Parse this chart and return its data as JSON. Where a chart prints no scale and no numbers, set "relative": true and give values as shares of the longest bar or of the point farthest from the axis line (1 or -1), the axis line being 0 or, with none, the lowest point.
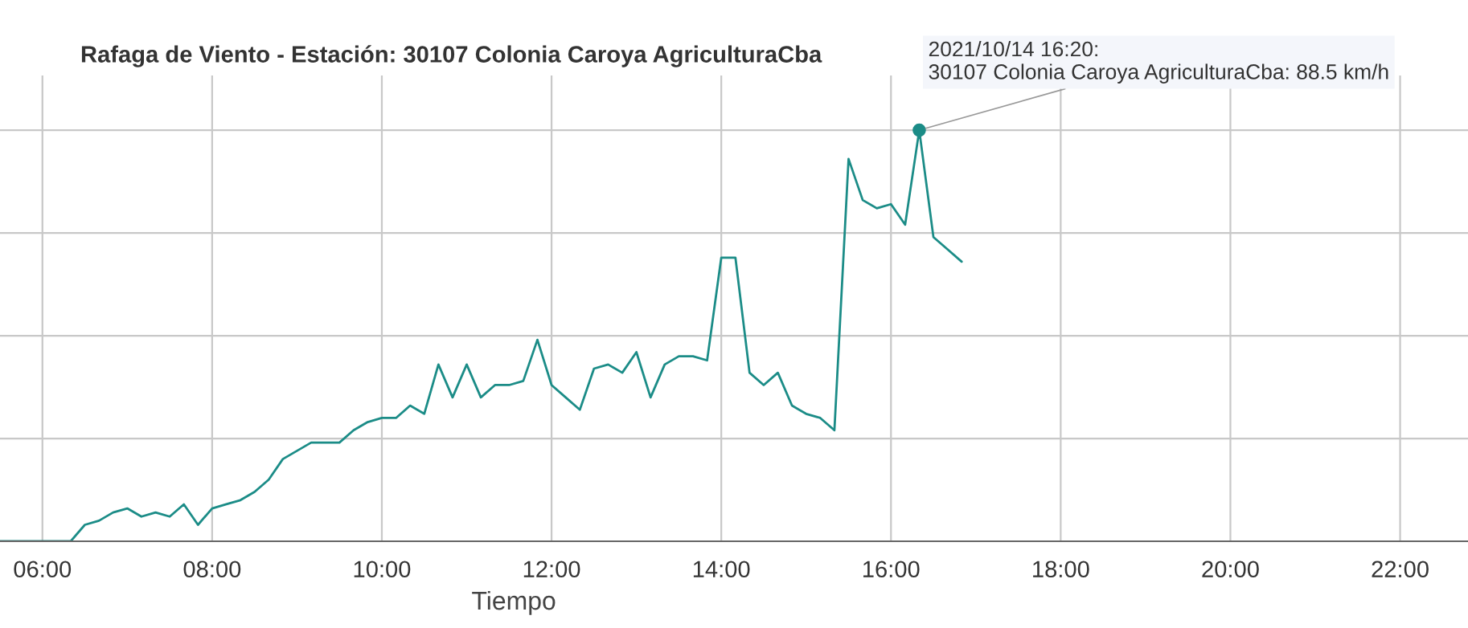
{
  "chart_data": {
    "type": "line",
    "title": "Rafaga de Viento - Estación: 30107 Colonia Caroya AgriculturaCba",
    "xlabel": "Tiempo",
    "relative": true,
    "grid": true,
    "marker": "none",
    "line_style": "solid",
    "xlim": [
      5.5,
      22.8
    ],
    "xticks": [
      {
        "value": 6,
        "label": "06:00"
      },
      {
        "value": 8,
        "label": "08:00"
      },
      {
        "value": 10,
        "label": "10:00"
      },
      {
        "value": 12,
        "label": "12:00"
      },
      {
        "value": 14,
        "label": "14:00"
      },
      {
        "value": 16,
        "label": "16:00"
      },
      {
        "value": 18,
        "label": "18:00"
      },
      {
        "value": 20,
        "label": "20:00"
      },
      {
        "value": 22,
        "label": "22:00"
      }
    ],
    "x": [
      5.5,
      5.6667,
      5.8333,
      6.0,
      6.1667,
      6.3333,
      6.5,
      6.6667,
      6.8333,
      7.0,
      7.1667,
      7.3333,
      7.5,
      7.6667,
      7.8333,
      8.0,
      8.1667,
      8.3333,
      8.5,
      8.6667,
      8.8333,
      9.0,
      9.1667,
      9.3333,
      9.5,
      9.6667,
      9.8333,
      10.0,
      10.1667,
      10.3333,
      10.5,
      10.6667,
      10.8333,
      11.0,
      11.1667,
      11.3333,
      11.5,
      11.6667,
      11.8333,
      12.0,
      12.1667,
      12.3333,
      12.5,
      12.6667,
      12.8333,
      13.0,
      13.1667,
      13.3333,
      13.5,
      13.6667,
      13.8333,
      14.0,
      14.1667,
      14.3333,
      14.5,
      14.6667,
      14.8333,
      15.0,
      15.1667,
      15.3333,
      15.5,
      15.6667,
      15.8333,
      16.0,
      16.1667,
      16.3333,
      16.5,
      16.6667,
      16.8333
    ],
    "series": [
      {
        "color": "#1b8c87",
        "values": [
          0,
          0,
          0,
          0,
          0,
          0.0,
          0.04,
          0.05,
          0.07,
          0.08,
          0.06,
          0.07,
          0.06,
          0.09,
          0.04,
          0.08,
          0.09,
          0.1,
          0.12,
          0.15,
          0.2,
          0.22,
          0.24,
          0.24,
          0.24,
          0.27,
          0.29,
          0.3,
          0.3,
          0.33,
          0.31,
          0.43,
          0.35,
          0.43,
          0.35,
          0.38,
          0.38,
          0.39,
          0.49,
          0.38,
          0.35,
          0.32,
          0.42,
          0.43,
          0.41,
          0.46,
          0.35,
          0.43,
          0.45,
          0.45,
          0.44,
          0.69,
          0.69,
          0.41,
          0.38,
          0.41,
          0.33,
          0.31,
          0.3,
          0.27,
          0.93,
          0.83,
          0.81,
          0.82,
          0.77,
          1,
          0.74,
          0.71,
          0.68
        ]
      }
    ],
    "annotations": [
      {
        "text": "2021/10/14 16:20:\n30107 Colonia Caroya AgriculturaCba: 88.5 km/h",
        "x": 16.3333,
        "y": 1
      }
    ]
  }
}
